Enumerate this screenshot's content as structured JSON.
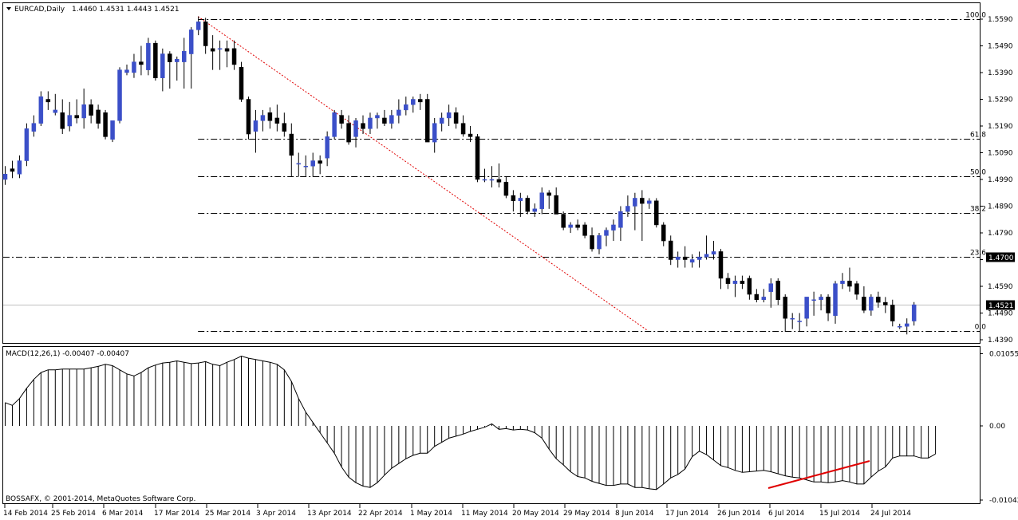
{
  "header": {
    "symbol": "EURCAD,Daily",
    "ohlc": "1.4460 1.4531 1.4443 1.4521"
  },
  "macd": {
    "label": "MACD(12,26,1) -0.00407 -0.00407",
    "ticks": [
      "0.01055",
      "0.00",
      "-0.01042"
    ]
  },
  "copyright": "BOSSAFX, © 2001-2014, MetaQuotes Software Corp.",
  "price_axis": {
    "ticks": [
      "1.5590",
      "1.5490",
      "1.5390",
      "1.5290",
      "1.5190",
      "1.5090",
      "1.4990",
      "1.4890",
      "1.4790",
      "1.4690",
      "1.4590",
      "1.4490",
      "1.4390"
    ],
    "marker_level": "1.4700",
    "current_price": "1.4521"
  },
  "fib_levels": [
    {
      "label": "100,0",
      "price": 1.559
    },
    {
      "label": "61,8",
      "price": 1.5141
    },
    {
      "label": "50,0",
      "price": 1.5002
    },
    {
      "label": "38,2",
      "price": 1.4864
    },
    {
      "label": "23,6",
      "price": 1.47
    },
    {
      "label": "0,0",
      "price": 1.4424
    }
  ],
  "date_axis": [
    "14 Feb 2014",
    "25 Feb 2014",
    "6 Mar 2014",
    "17 Mar 2014",
    "25 Mar 2014",
    "3 Apr 2014",
    "13 Apr 2014",
    "22 Apr 2014",
    "1 May 2014",
    "11 May 2014",
    "20 May 2014",
    "29 May 2014",
    "8 Jun 2014",
    "17 Jun 2014",
    "26 Jun 2014",
    "6 Jul 2014",
    "15 Jul 2014",
    "24 Jul 2014"
  ],
  "colors": {
    "bull": "#3b4fc8",
    "bear": "#000000",
    "trend": "#e00000",
    "divergence": "#e00000",
    "fib": "#000000"
  },
  "chart_data": [
    {
      "type": "candlestick",
      "title": "EURCAD,Daily",
      "ylim": [
        1.439,
        1.564
      ],
      "candles": [
        [
          1.499,
          1.504,
          1.497,
          1.501
        ],
        [
          1.503,
          1.506,
          1.4995,
          1.502
        ],
        [
          1.501,
          1.508,
          1.4995,
          1.506
        ],
        [
          1.506,
          1.52,
          1.504,
          1.518
        ],
        [
          1.517,
          1.523,
          1.515,
          1.52
        ],
        [
          1.52,
          1.532,
          1.519,
          1.53
        ],
        [
          1.529,
          1.532,
          1.525,
          1.528
        ],
        [
          1.524,
          1.531,
          1.523,
          1.525
        ],
        [
          1.524,
          1.529,
          1.516,
          1.518
        ],
        [
          1.519,
          1.528,
          1.517,
          1.523
        ],
        [
          1.523,
          1.529,
          1.52,
          1.522
        ],
        [
          1.522,
          1.533,
          1.518,
          1.527
        ],
        [
          1.527,
          1.529,
          1.52,
          1.523
        ],
        [
          1.525,
          1.527,
          1.518,
          1.52
        ],
        [
          1.524,
          1.525,
          1.514,
          1.515
        ],
        [
          1.514,
          1.52,
          1.513,
          1.521
        ],
        [
          1.521,
          1.541,
          1.52,
          1.54
        ],
        [
          1.539,
          1.542,
          1.538,
          1.54
        ],
        [
          1.539,
          1.546,
          1.537,
          1.543
        ],
        [
          1.543,
          1.549,
          1.538,
          1.542
        ],
        [
          1.54,
          1.552,
          1.538,
          1.55
        ],
        [
          1.55,
          1.551,
          1.536,
          1.537
        ],
        [
          1.537,
          1.548,
          1.532,
          1.546
        ],
        [
          1.546,
          1.547,
          1.533,
          1.543
        ],
        [
          1.543,
          1.545,
          1.536,
          1.544
        ],
        [
          1.543,
          1.552,
          1.533,
          1.547
        ],
        [
          1.546,
          1.556,
          1.533,
          1.555
        ],
        [
          1.555,
          1.56,
          1.553,
          1.558
        ],
        [
          1.558,
          1.5595,
          1.546,
          1.549
        ],
        [
          1.548,
          1.553,
          1.54,
          1.547
        ],
        [
          1.548,
          1.551,
          1.54,
          1.548
        ],
        [
          1.548,
          1.551,
          1.541,
          1.547
        ],
        [
          1.548,
          1.551,
          1.54,
          1.542
        ],
        [
          1.541,
          1.543,
          1.528,
          1.529
        ],
        [
          1.529,
          1.53,
          1.514,
          1.516
        ],
        [
          1.517,
          1.525,
          1.509,
          1.521
        ],
        [
          1.521,
          1.525,
          1.517,
          1.523
        ],
        [
          1.524,
          1.526,
          1.518,
          1.521
        ],
        [
          1.522,
          1.527,
          1.517,
          1.52
        ],
        [
          1.52,
          1.524,
          1.515,
          1.517
        ],
        [
          1.516,
          1.52,
          1.5,
          1.508
        ],
        [
          1.505,
          1.509,
          1.5,
          1.505
        ],
        [
          1.504,
          1.508,
          1.5,
          1.504
        ],
        [
          1.504,
          1.509,
          1.5,
          1.506
        ],
        [
          1.506,
          1.508,
          1.501,
          1.505
        ],
        [
          1.507,
          1.517,
          1.504,
          1.515
        ],
        [
          1.515,
          1.525,
          1.514,
          1.524
        ],
        [
          1.523,
          1.525,
          1.518,
          1.52
        ],
        [
          1.52,
          1.523,
          1.512,
          1.513
        ],
        [
          1.515,
          1.522,
          1.511,
          1.521
        ],
        [
          1.52,
          1.523,
          1.516,
          1.518
        ],
        [
          1.518,
          1.524,
          1.516,
          1.522
        ],
        [
          1.522,
          1.524,
          1.518,
          1.523
        ],
        [
          1.522,
          1.525,
          1.519,
          1.52
        ],
        [
          1.52,
          1.525,
          1.518,
          1.523
        ],
        [
          1.523,
          1.529,
          1.52,
          1.525
        ],
        [
          1.525,
          1.53,
          1.523,
          1.527
        ],
        [
          1.527,
          1.53,
          1.524,
          1.529
        ],
        [
          1.529,
          1.531,
          1.525,
          1.528
        ],
        [
          1.529,
          1.531,
          1.514,
          1.513
        ],
        [
          1.513,
          1.522,
          1.509,
          1.52
        ],
        [
          1.52,
          1.524,
          1.517,
          1.522
        ],
        [
          1.522,
          1.527,
          1.519,
          1.524
        ],
        [
          1.524,
          1.526,
          1.518,
          1.52
        ],
        [
          1.52,
          1.523,
          1.515,
          1.516
        ],
        [
          1.516,
          1.519,
          1.513,
          1.515
        ],
        [
          1.515,
          1.516,
          1.498,
          1.499
        ],
        [
          1.499,
          1.503,
          1.498,
          1.499
        ],
        [
          1.499,
          1.504,
          1.496,
          1.499
        ],
        [
          1.499,
          1.505,
          1.496,
          1.498
        ],
        [
          1.498,
          1.5,
          1.492,
          1.493
        ],
        [
          1.493,
          1.495,
          1.487,
          1.491
        ],
        [
          1.491,
          1.494,
          1.485,
          1.492
        ],
        [
          1.492,
          1.493,
          1.486,
          1.487
        ],
        [
          1.487,
          1.49,
          1.485,
          1.488
        ],
        [
          1.488,
          1.496,
          1.486,
          1.494
        ],
        [
          1.494,
          1.495,
          1.488,
          1.493
        ],
        [
          1.493,
          1.496,
          1.486,
          1.486
        ],
        [
          1.486,
          1.487,
          1.48,
          1.481
        ],
        [
          1.481,
          1.483,
          1.479,
          1.482
        ],
        [
          1.482,
          1.484,
          1.48,
          1.481
        ],
        [
          1.482,
          1.483,
          1.477,
          1.478
        ],
        [
          1.478,
          1.481,
          1.472,
          1.473
        ],
        [
          1.473,
          1.479,
          1.471,
          1.478
        ],
        [
          1.478,
          1.481,
          1.474,
          1.48
        ],
        [
          1.48,
          1.484,
          1.476,
          1.482
        ],
        [
          1.481,
          1.489,
          1.476,
          1.487
        ],
        [
          1.487,
          1.493,
          1.485,
          1.489
        ],
        [
          1.489,
          1.494,
          1.48,
          1.492
        ],
        [
          1.492,
          1.495,
          1.476,
          1.49
        ],
        [
          1.49,
          1.492,
          1.488,
          1.491
        ],
        [
          1.491,
          1.492,
          1.481,
          1.482
        ],
        [
          1.482,
          1.483,
          1.474,
          1.476
        ],
        [
          1.476,
          1.478,
          1.467,
          1.469
        ],
        [
          1.469,
          1.472,
          1.466,
          1.47
        ],
        [
          1.47,
          1.474,
          1.466,
          1.469
        ],
        [
          1.468,
          1.471,
          1.466,
          1.469
        ],
        [
          1.469,
          1.472,
          1.466,
          1.47
        ],
        [
          1.47,
          1.478,
          1.469,
          1.471
        ],
        [
          1.471,
          1.476,
          1.469,
          1.472
        ],
        [
          1.472,
          1.473,
          1.458,
          1.462
        ],
        [
          1.462,
          1.464,
          1.458,
          1.46
        ],
        [
          1.46,
          1.463,
          1.455,
          1.461
        ],
        [
          1.461,
          1.463,
          1.458,
          1.46
        ],
        [
          1.462,
          1.463,
          1.454,
          1.456
        ],
        [
          1.456,
          1.458,
          1.453,
          1.454
        ],
        [
          1.454,
          1.458,
          1.453,
          1.455
        ],
        [
          1.457,
          1.462,
          1.451,
          1.46
        ],
        [
          1.461,
          1.462,
          1.452,
          1.454
        ],
        [
          1.455,
          1.456,
          1.442,
          1.447
        ],
        [
          1.447,
          1.449,
          1.443,
          1.447
        ],
        [
          1.446,
          1.449,
          1.442,
          1.446
        ],
        [
          1.447,
          1.455,
          1.444,
          1.455
        ],
        [
          1.454,
          1.457,
          1.448,
          1.454
        ],
        [
          1.454,
          1.456,
          1.45,
          1.455
        ],
        [
          1.455,
          1.456,
          1.446,
          1.449
        ],
        [
          1.448,
          1.461,
          1.445,
          1.46
        ],
        [
          1.46,
          1.464,
          1.458,
          1.461
        ],
        [
          1.461,
          1.466,
          1.457,
          1.459
        ],
        [
          1.46,
          1.461,
          1.454,
          1.456
        ],
        [
          1.455,
          1.459,
          1.449,
          1.45
        ],
        [
          1.45,
          1.456,
          1.448,
          1.455
        ],
        [
          1.455,
          1.457,
          1.451,
          1.453
        ],
        [
          1.453,
          1.455,
          1.449,
          1.452
        ],
        [
          1.452,
          1.454,
          1.444,
          1.446
        ],
        [
          1.444,
          1.445,
          1.443,
          1.444
        ],
        [
          1.444,
          1.447,
          1.441,
          1.445
        ],
        [
          1.446,
          1.4531,
          1.4443,
          1.4521
        ]
      ]
    },
    {
      "type": "bar",
      "title": "MACD(12,26,1) -0.00407 -0.00407",
      "ylim": [
        -0.01042,
        0.01055
      ],
      "values": [
        0.0034,
        0.003,
        0.004,
        0.0055,
        0.0068,
        0.0078,
        0.0082,
        0.0082,
        0.0083,
        0.0083,
        0.0083,
        0.0083,
        0.0085,
        0.0087,
        0.009,
        0.0088,
        0.0082,
        0.0076,
        0.0073,
        0.0078,
        0.0085,
        0.0089,
        0.0092,
        0.0093,
        0.0095,
        0.0093,
        0.0091,
        0.0092,
        0.0094,
        0.009,
        0.0088,
        0.0093,
        0.0097,
        0.0102,
        0.0099,
        0.0097,
        0.0095,
        0.0093,
        0.009,
        0.0082,
        0.0065,
        0.004,
        0.002,
        0.0005,
        -0.001,
        -0.0025,
        -0.004,
        -0.006,
        -0.0075,
        -0.0083,
        -0.0088,
        -0.009,
        -0.0083,
        -0.0072,
        -0.0062,
        -0.0055,
        -0.0048,
        -0.0043,
        -0.004,
        -0.004,
        -0.003,
        -0.0024,
        -0.0018,
        -0.0015,
        -0.0012,
        -0.0008,
        -0.0005,
        -0.0002,
        0.0003,
        -0.0005,
        -0.0004,
        -0.0006,
        -0.0005,
        -0.0006,
        -0.001,
        -0.0018,
        -0.0034,
        -0.0048,
        -0.0057,
        -0.0067,
        -0.0074,
        -0.0076,
        -0.0081,
        -0.0084,
        -0.0087,
        -0.0087,
        -0.0085,
        -0.0085,
        -0.009,
        -0.009,
        -0.0092,
        -0.0093,
        -0.0085,
        -0.0076,
        -0.0071,
        -0.0063,
        -0.0045,
        -0.0037,
        -0.0042,
        -0.005,
        -0.0058,
        -0.0061,
        -0.0065,
        -0.0068,
        -0.0067,
        -0.0066,
        -0.0065,
        -0.0067,
        -0.007,
        -0.0073,
        -0.0075,
        -0.0076,
        -0.0079,
        -0.0082,
        -0.0082,
        -0.0083,
        -0.0082,
        -0.008,
        -0.0082,
        -0.0085,
        -0.0085,
        -0.0075,
        -0.0066,
        -0.006,
        -0.0047,
        -0.0044,
        -0.0044,
        -0.0044,
        -0.0047,
        -0.0047,
        -0.0041
      ]
    }
  ]
}
